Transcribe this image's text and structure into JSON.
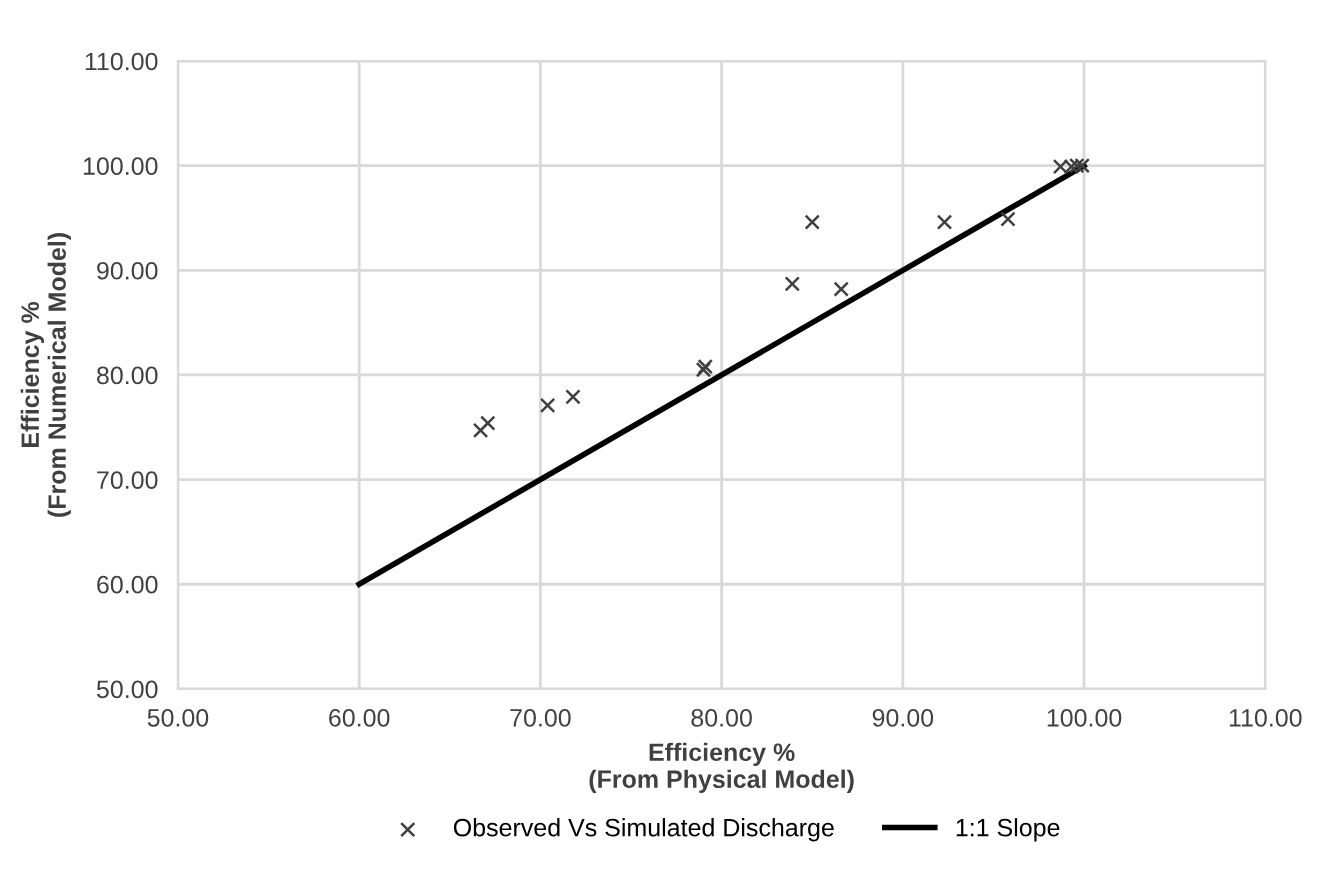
{
  "chart_data": {
    "type": "scatter",
    "xlabel": "Efficiency %\n(From Physical Model)",
    "ylabel": "Efficiency %\n(From Numerical Model)",
    "xlim": [
      50,
      110
    ],
    "ylim": [
      50,
      110
    ],
    "xticks": [
      {
        "value": 50,
        "label": "50.00"
      },
      {
        "value": 60,
        "label": "60.00"
      },
      {
        "value": 70,
        "label": "70.00"
      },
      {
        "value": 80,
        "label": "80.00"
      },
      {
        "value": 90,
        "label": "90.00"
      },
      {
        "value": 100,
        "label": "100.00"
      },
      {
        "value": 110,
        "label": "110.00"
      }
    ],
    "yticks": [
      {
        "value": 50,
        "label": "50.00"
      },
      {
        "value": 60,
        "label": "60.00"
      },
      {
        "value": 70,
        "label": "70.00"
      },
      {
        "value": 80,
        "label": "80.00"
      },
      {
        "value": 90,
        "label": "90.00"
      },
      {
        "value": 100,
        "label": "100.00"
      },
      {
        "value": 110,
        "label": "110.00"
      }
    ],
    "grid": true,
    "legend": "bottom",
    "series": [
      {
        "name": "Observed Vs Simulated Discharge",
        "marker": "cross",
        "color": "#404040",
        "x": [
          66.7,
          67.1,
          70.4,
          71.8,
          79.0,
          79.1,
          83.9,
          85.0,
          86.6,
          92.3,
          95.8,
          98.7,
          99.3,
          99.6,
          99.9
        ],
        "values": [
          74.7,
          75.4,
          77.1,
          77.9,
          80.5,
          80.8,
          88.7,
          94.6,
          88.2,
          94.6,
          94.9,
          99.9,
          99.9,
          100.0,
          100.0
        ]
      },
      {
        "name": "1:1 Slope",
        "type": "line",
        "marker": "none",
        "line_style": "solid",
        "color": "#000000",
        "x": [
          60,
          100
        ],
        "values": [
          60,
          100
        ]
      }
    ]
  }
}
